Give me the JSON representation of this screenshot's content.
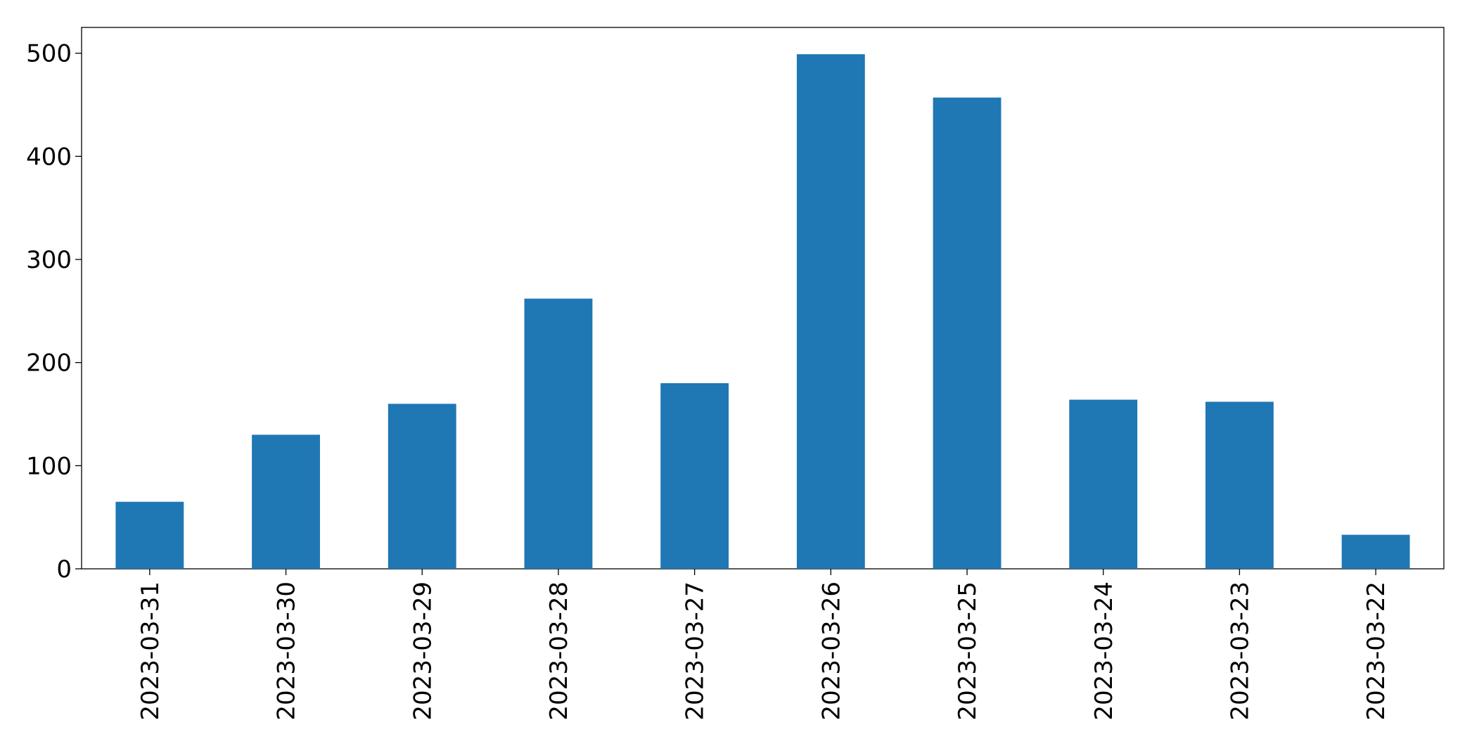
{
  "chart_data": {
    "type": "bar",
    "categories": [
      "2023-03-31",
      "2023-03-30",
      "2023-03-29",
      "2023-03-28",
      "2023-03-27",
      "2023-03-26",
      "2023-03-25",
      "2023-03-24",
      "2023-03-23",
      "2023-03-22"
    ],
    "values": [
      65,
      130,
      160,
      262,
      180,
      499,
      457,
      164,
      162,
      33
    ],
    "color": "#1f77b4",
    "ylim": [
      0,
      525
    ],
    "yticks": [
      0,
      100,
      200,
      300,
      400,
      500
    ],
    "grid": false
  }
}
